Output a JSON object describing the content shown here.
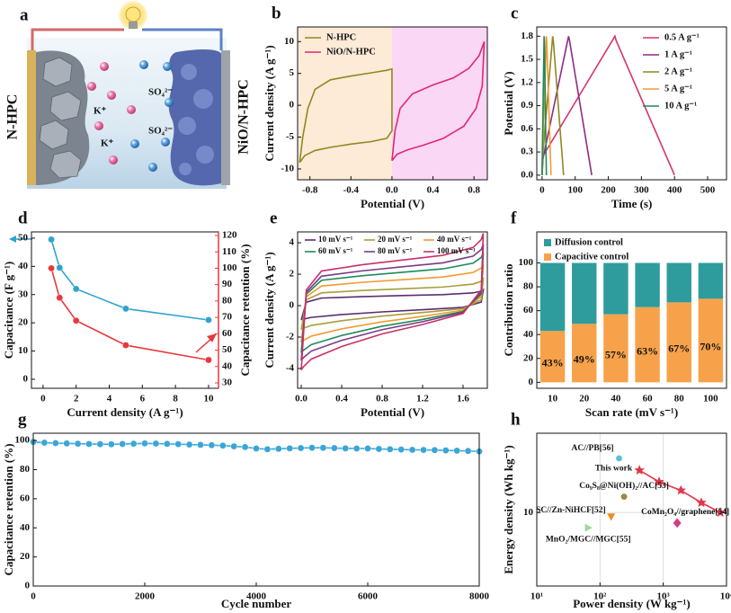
{
  "schematic": {
    "panel": "a",
    "left_electrode": "N-HPC",
    "right_electrode": "NiO/N-HPC",
    "ion_labels": [
      "SO₄²⁻",
      "K⁺",
      "SO₄²⁻",
      "K⁺"
    ]
  },
  "chart_data": [
    {
      "type": "line",
      "panel": "b",
      "xlabel": "Potential (V)",
      "ylabel": "Current density (A g⁻¹)",
      "xlim": [
        -0.92,
        0.93
      ],
      "ylim": [
        -11.7,
        12.3
      ],
      "xticks": [
        -0.8,
        -0.4,
        {
          "value": 0,
          "label": "0.0"
        },
        0.4,
        0.8
      ],
      "yticks": [
        -10,
        -5,
        0,
        5,
        10
      ],
      "legend": "upper left",
      "split_background": [
        "#fdebd8",
        "#fbd7f6"
      ],
      "series": [
        {
          "name": "N-HPC",
          "color": "#8c8a1e",
          "x": [
            -0.9,
            -0.87,
            -0.82,
            -0.75,
            -0.6,
            -0.4,
            -0.2,
            -0.05,
            0,
            0,
            -0.05,
            -0.2,
            -0.4,
            -0.6,
            -0.75,
            -0.85,
            -0.9
          ],
          "values": [
            -9,
            -5,
            -0.5,
            2.5,
            4,
            4.6,
            5.1,
            5.5,
            5.7,
            -4,
            -5.2,
            -5.7,
            -6.1,
            -6.6,
            -7.1,
            -7.9,
            -9
          ]
        },
        {
          "name": "NiO/N-HPC",
          "color": "#e0286e",
          "x": [
            0,
            0.03,
            0.08,
            0.2,
            0.4,
            0.6,
            0.75,
            0.85,
            0.9,
            0.88,
            0.82,
            0.7,
            0.5,
            0.3,
            0.15,
            0.05,
            0
          ],
          "values": [
            -8.7,
            -4,
            -0.5,
            1.8,
            3.2,
            4.3,
            5.8,
            7.8,
            10,
            3,
            -0.5,
            -3.3,
            -5.2,
            -6.3,
            -7,
            -7.7,
            -8.7
          ]
        }
      ]
    },
    {
      "type": "line",
      "panel": "c",
      "xlabel": "Time (s)",
      "ylabel": "Potential (V)",
      "xlim": [
        -16,
        557
      ],
      "ylim": [
        -0.06,
        1.92
      ],
      "xticks": [
        0,
        100,
        200,
        300,
        400,
        500
      ],
      "yticks": [
        {
          "value": 0,
          "label": "0.0"
        },
        0.3,
        0.6,
        0.9,
        1.2,
        1.5,
        1.8
      ],
      "legend": "upper right",
      "series": [
        {
          "name": "0.5 A g⁻¹",
          "color": "#d6336c",
          "x": [
            0,
            3,
            220,
            224,
            400
          ],
          "values": [
            0,
            0.25,
            1.8,
            1.74,
            0
          ]
        },
        {
          "name": "1 A g⁻¹",
          "color": "#8e2a88",
          "x": [
            0,
            2,
            80,
            83,
            150
          ],
          "values": [
            0,
            0.2,
            1.8,
            1.74,
            0
          ]
        },
        {
          "name": "2 A g⁻¹",
          "color": "#8c8a1e",
          "x": [
            0,
            1,
            32,
            34,
            65
          ],
          "values": [
            0,
            0.2,
            1.8,
            1.74,
            0
          ]
        },
        {
          "name": "5 A g⁻¹",
          "color": "#f29a2e",
          "x": [
            0,
            1,
            13,
            14,
            27
          ],
          "values": [
            0,
            0.2,
            1.8,
            1.74,
            0
          ]
        },
        {
          "name": "10 A g⁻¹",
          "color": "#1e8a5a",
          "x": [
            0,
            0.5,
            6,
            7,
            13
          ],
          "values": [
            0,
            0.2,
            1.8,
            1.74,
            0
          ]
        }
      ]
    },
    {
      "type": "line",
      "panel": "d",
      "xlabel": "Current density (A g⁻¹)",
      "ylabel": "Capacitance (F g⁻¹)",
      "y2label": "Capacitance retention (%)",
      "xlim": [
        -0.7,
        10.6
      ],
      "ylim": [
        -3.2,
        52.2
      ],
      "y2lim": [
        26.7,
        122.2
      ],
      "xticks": [
        0,
        2,
        4,
        6,
        8,
        10
      ],
      "yticks": [
        0,
        10,
        20,
        30,
        40,
        50
      ],
      "y2ticks": [
        30,
        40,
        50,
        60,
        70,
        80,
        90,
        100,
        110,
        120
      ],
      "x": [
        0.5,
        1,
        2,
        5,
        10
      ],
      "series": [
        {
          "color": "#2fa3cf",
          "marker": "circle",
          "values": [
            49.5,
            39.5,
            32,
            25,
            21
          ]
        },
        {
          "color": "#e8383d",
          "marker": "circle",
          "axis": "y2",
          "values": [
            100,
            82,
            68,
            53,
            44
          ]
        }
      ]
    },
    {
      "type": "line",
      "panel": "e",
      "xlabel": "Potential (V)",
      "ylabel": "Current density (A g⁻¹)",
      "xlim": [
        -0.036,
        1.84
      ],
      "ylim": [
        -5.26,
        4.69
      ],
      "xticks": [
        {
          "value": 0,
          "label": "0.0"
        },
        0.4,
        0.8,
        1.2,
        1.6
      ],
      "yticks": [
        -4,
        -2,
        0,
        2,
        4
      ],
      "legend": "upper left",
      "legend_columns": 3,
      "x": [
        0,
        0.05,
        0.2,
        0.6,
        1.0,
        1.4,
        1.7,
        1.78,
        1.8,
        1.78,
        1.6,
        1.2,
        0.8,
        0.4,
        0.1,
        0.02,
        0
      ],
      "series": [
        {
          "name": "10 mV s⁻¹",
          "color": "#5a2d6e",
          "values": [
            -0.9,
            0.22,
            0.48,
            0.57,
            0.64,
            0.7,
            0.81,
            0.92,
            1.01,
            0.22,
            -0.11,
            -0.26,
            -0.4,
            -0.57,
            -0.75,
            -0.86,
            -0.9
          ]
        },
        {
          "name": "20 mV s⁻¹",
          "color": "#a89d3c",
          "values": [
            -1.52,
            0.37,
            0.81,
            0.96,
            1.07,
            1.18,
            1.37,
            1.55,
            1.7,
            0.37,
            -0.19,
            -0.44,
            -0.67,
            -0.96,
            -1.26,
            -1.44,
            -1.52
          ]
        },
        {
          "name": "40 mV s⁻¹",
          "color": "#f29a2e",
          "values": [
            -2.34,
            0.57,
            1.25,
            1.48,
            1.65,
            1.82,
            2.11,
            2.39,
            2.62,
            0.57,
            -0.29,
            -0.68,
            -1.03,
            -1.48,
            -1.94,
            -2.22,
            -2.34
          ]
        },
        {
          "name": "60 mV s⁻¹",
          "color": "#1e8a5a",
          "values": [
            -2.99,
            0.73,
            1.61,
            1.9,
            2.12,
            2.34,
            2.7,
            3.07,
            3.36,
            0.73,
            -0.37,
            -0.88,
            -1.31,
            -1.9,
            -2.48,
            -2.85,
            -2.99
          ]
        },
        {
          "name": "80 mV s⁻¹",
          "color": "#7a3a86",
          "values": [
            -3.49,
            0.85,
            1.87,
            2.21,
            2.47,
            2.72,
            3.15,
            3.57,
            3.91,
            0.85,
            -0.43,
            -1.02,
            -1.53,
            -2.21,
            -2.89,
            -3.32,
            -3.49
          ]
        },
        {
          "name": "100 mV s⁻¹",
          "color": "#c8306a",
          "values": [
            -4.1,
            1.0,
            2.2,
            2.6,
            2.9,
            3.2,
            3.7,
            4.2,
            4.6,
            1.0,
            -0.5,
            -1.2,
            -1.8,
            -2.6,
            -3.4,
            -3.9,
            -4.1
          ]
        }
      ]
    },
    {
      "type": "bar",
      "panel": "f",
      "stacked": true,
      "xlabel": "Scan rate (mV s⁻¹)",
      "ylabel": "Contribution ratio",
      "categories": [
        "10",
        "20",
        "40",
        "60",
        "80",
        "100"
      ],
      "ylim": [
        -5,
        126
      ],
      "yticks": [
        0,
        20,
        40,
        60,
        80,
        100
      ],
      "legend": "upper left",
      "series": [
        {
          "name": "Capacitive control",
          "color": "#f7a24a",
          "values": [
            43,
            49,
            57,
            63,
            67,
            70
          ],
          "value_labels": [
            "43%",
            "49%",
            "57%",
            "63%",
            "67%",
            "70%"
          ]
        },
        {
          "name": "Diffusion control",
          "color": "#2e9c9c",
          "values": [
            57,
            51,
            43,
            37,
            33,
            30
          ]
        }
      ]
    },
    {
      "type": "line",
      "panel": "g",
      "xlabel": "Cycle number",
      "ylabel": "Capacitance retention (%)",
      "xlim": [
        0,
        8000
      ],
      "ylim": [
        0,
        105
      ],
      "xticks": [
        0,
        2000,
        4000,
        6000,
        8000
      ],
      "yticks": [
        0,
        20,
        40,
        60,
        80,
        100
      ],
      "x": [
        0,
        200,
        400,
        600,
        800,
        1000,
        1200,
        1400,
        1600,
        1800,
        2000,
        2200,
        2400,
        2600,
        2800,
        3000,
        3200,
        3400,
        3600,
        3800,
        4000,
        4200,
        4400,
        4600,
        4800,
        5000,
        5200,
        5400,
        5600,
        5800,
        6000,
        6200,
        6400,
        6600,
        6800,
        7000,
        7200,
        7400,
        7600,
        7800,
        8000
      ],
      "series": [
        {
          "color": "#3aa6d8",
          "marker": "circle",
          "values": [
            99,
            98.5,
            98.2,
            98,
            97.8,
            97.6,
            97.5,
            97.4,
            97.6,
            97.8,
            98,
            97.9,
            97.7,
            97.5,
            97.2,
            97,
            96.8,
            96.5,
            96,
            95.5,
            94.5,
            94,
            94.3,
            94.6,
            94.8,
            95,
            95,
            94.8,
            94.6,
            94.5,
            94.5,
            94.2,
            94,
            93.8,
            93.6,
            93.5,
            93.4,
            93.2,
            93,
            92.8,
            92.5
          ]
        }
      ]
    },
    {
      "type": "scatter",
      "panel": "h",
      "xlabel": "Power density (W kg⁻¹)",
      "ylabel": "Energy density (Wh kg⁻¹)",
      "xscale": "log",
      "yscale": "log",
      "grid": true,
      "xlim": [
        10,
        10000
      ],
      "ylim": [
        1.9,
        60
      ],
      "xticks": [
        {
          "value": 10,
          "label": "10¹"
        },
        {
          "value": 100,
          "label": "10²"
        },
        {
          "value": 1000,
          "label": "10³"
        },
        {
          "value": 10000,
          "label": "10⁴"
        }
      ],
      "yticks": [
        10
      ],
      "series": [
        {
          "name": "AC//PB[56]",
          "color": "#5bc0d8",
          "marker": "circle",
          "x": [
            200
          ],
          "values": [
            34
          ]
        },
        {
          "name": "This work",
          "color": "#e0384a",
          "marker": "star",
          "line": true,
          "x": [
            420,
            860,
            1900,
            4000,
            8000
          ],
          "values": [
            26,
            20,
            16.5,
            12.5,
            10
          ]
        },
        {
          "name": "Co₉S₈@Ni(OH)₂//AC[53]",
          "color": "#9a8a3a",
          "marker": "circle",
          "x": [
            240
          ],
          "values": [
            14.3
          ]
        },
        {
          "name": "SC//Zn-NiHCF[52]",
          "color": "#f08a20",
          "marker": "triangle-down",
          "x": [
            150
          ],
          "values": [
            9.1
          ]
        },
        {
          "name": "CoMn₂O₄//graphene[54]",
          "color": "#d63a8a",
          "marker": "diamond",
          "x": [
            1660
          ],
          "values": [
            7.9
          ]
        },
        {
          "name": "MnO₂/MGC//MGC[55]",
          "color": "#9ed89e",
          "marker": "triangle-right",
          "x": [
            65
          ],
          "values": [
            7.1
          ]
        }
      ]
    }
  ]
}
